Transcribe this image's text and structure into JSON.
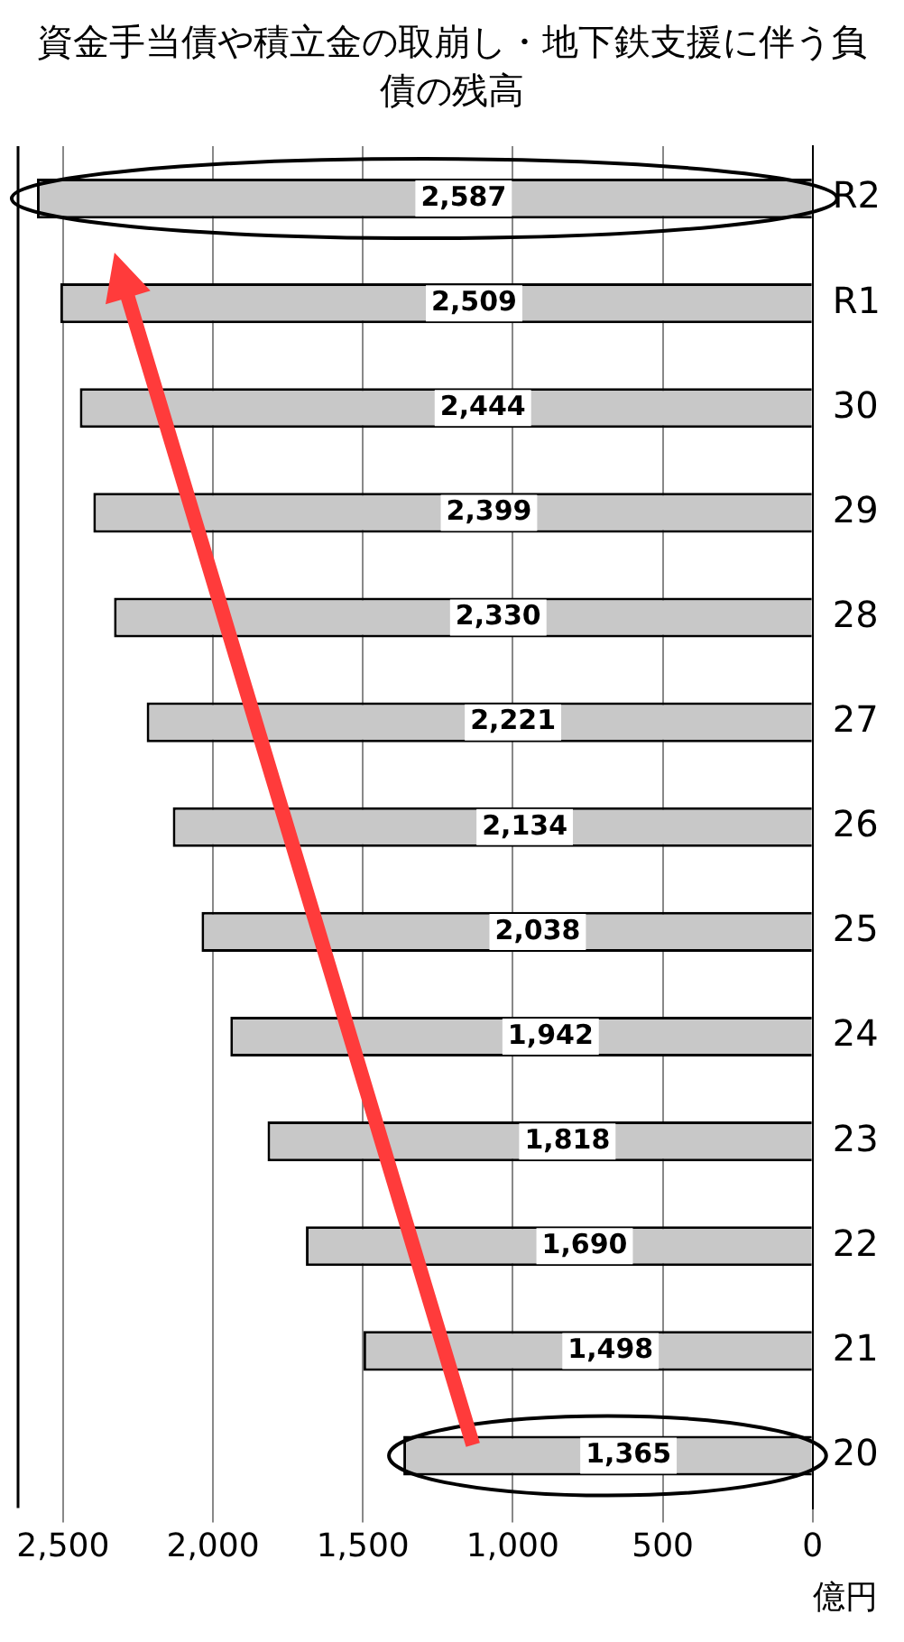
{
  "chart_data": {
    "type": "bar",
    "orientation": "horizontal",
    "title": "資金手当債や積立金の取崩し・地下鉄支援に伴う負債の残高",
    "xlabel": "億円",
    "categories": [
      "R2",
      "R1",
      "30",
      "29",
      "28",
      "27",
      "26",
      "25",
      "24",
      "23",
      "22",
      "21",
      "20"
    ],
    "values": [
      2587,
      2509,
      2444,
      2399,
      2330,
      2221,
      2134,
      2038,
      1942,
      1818,
      1690,
      1498,
      1365
    ],
    "color": "#c8c8c8",
    "xlim": [
      2650,
      0
    ],
    "xticks": [
      {
        "value": 2500,
        "label": "2,500"
      },
      {
        "value": 2000,
        "label": "2,000"
      },
      {
        "value": 1500,
        "label": "1,500"
      },
      {
        "value": 1000,
        "label": "1,000"
      },
      {
        "value": 500,
        "label": "500"
      },
      {
        "value": 0,
        "label": "0"
      }
    ],
    "value_labels": [
      "2,587",
      "2,509",
      "2,444",
      "2,399",
      "2,330",
      "2,221",
      "2,134",
      "2,038",
      "1,942",
      "1,818",
      "1,690",
      "1,498",
      "1,365"
    ],
    "grid": "x"
  }
}
